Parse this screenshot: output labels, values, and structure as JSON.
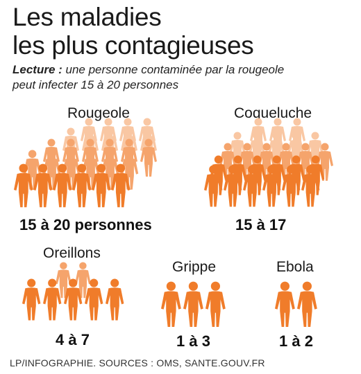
{
  "title": {
    "line1": "Les maladies",
    "line2": "les plus contagieuses"
  },
  "lecture": {
    "prefix": "Lecture :",
    "line1": " une personne contaminée par la rougeole",
    "line2": "peut infecter 15 à 20 personnes"
  },
  "diseases": [
    {
      "name": "Rougeole",
      "value": "15 à 20 personnes"
    },
    {
      "name": "Coqueluche",
      "value": "15 à 17"
    },
    {
      "name": "Oreillons",
      "value": "4 à 7"
    },
    {
      "name": "Grippe",
      "value": "1 à 3"
    },
    {
      "name": "Ebola",
      "value": "1 à 2"
    }
  ],
  "colors": {
    "solid": "#f07c2a",
    "mid": "#f5a46c",
    "light": "#f9c7a3"
  },
  "icon": "person-icon",
  "footer": "LP/INFOGRAPHIE.   SOURCES : OMS, SANTE.GOUV.FR"
}
